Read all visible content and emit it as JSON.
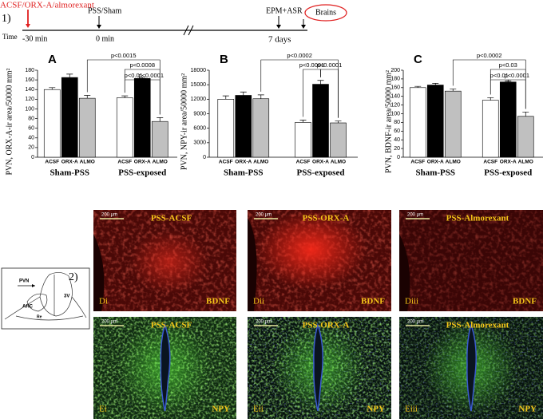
{
  "timeline": {
    "panel_label": "1)",
    "treatment": "ACSF/ORX-A/almorexant",
    "time_label": "Time",
    "t_minus": "-30 min",
    "t_zero": "0 min",
    "t_end": "7 days",
    "event_stress": "PSS/Sham",
    "event_test": "EPM+ASR",
    "event_end": "Brains"
  },
  "chart_data": [
    {
      "type": "bar",
      "panel": "A",
      "ylabel": "PVN, ORX-A-ir area/50000 mm²",
      "categories": [
        "Sham-PSS",
        "PSS-exposed"
      ],
      "series": [
        {
          "name": "ACSF",
          "color": "#ffffff",
          "values": [
            140,
            123
          ],
          "errors": [
            4,
            4
          ]
        },
        {
          "name": "ORX-A",
          "color": "#000000",
          "values": [
            165,
            163
          ],
          "errors": [
            7,
            2
          ]
        },
        {
          "name": "ALMO",
          "color": "#c0c0c0",
          "values": [
            122,
            74
          ],
          "errors": [
            6,
            8
          ]
        }
      ],
      "ylim": [
        0,
        180
      ],
      "yticks": [
        0,
        20,
        40,
        60,
        80,
        100,
        120,
        140,
        160,
        180
      ],
      "annotations": [
        "p<0.0015",
        "p<0.0008",
        "p<0.01",
        "p<0.0001"
      ]
    },
    {
      "type": "bar",
      "panel": "B",
      "ylabel": "PVN, NPY-ir area/50000 mm²",
      "categories": [
        "Sham-PSS",
        "PSS-exposed"
      ],
      "series": [
        {
          "name": "ACSF",
          "color": "#ffffff",
          "values": [
            12000,
            7200
          ],
          "errors": [
            700,
            500
          ]
        },
        {
          "name": "ORX-A",
          "color": "#000000",
          "values": [
            12800,
            15100
          ],
          "errors": [
            700,
            800
          ]
        },
        {
          "name": "ALMO",
          "color": "#c0c0c0",
          "values": [
            12100,
            7100
          ],
          "errors": [
            800,
            400
          ]
        }
      ],
      "ylim": [
        0,
        18000
      ],
      "yticks": [
        0,
        3000,
        6000,
        9000,
        12000,
        15000,
        18000
      ],
      "annotations": [
        "p<0.0002",
        "p<0.0001",
        "p<0.0001"
      ]
    },
    {
      "type": "bar",
      "panel": "C",
      "ylabel": "PVN, BDNF-ir area/50000 mm²",
      "categories": [
        "Sham-PSS",
        "PSS-exposed"
      ],
      "series": [
        {
          "name": "ACSF",
          "color": "#ffffff",
          "values": [
            160,
            131
          ],
          "errors": [
            3,
            6
          ]
        },
        {
          "name": "ORX-A",
          "color": "#000000",
          "values": [
            166,
            173
          ],
          "errors": [
            4,
            2
          ]
        },
        {
          "name": "ALMO",
          "color": "#c0c0c0",
          "values": [
            152,
            94
          ],
          "errors": [
            5,
            10
          ]
        }
      ],
      "ylim": [
        0,
        200
      ],
      "yticks": [
        0,
        20,
        40,
        60,
        80,
        100,
        120,
        140,
        160,
        180,
        200
      ],
      "annotations": [
        "p<0.0002",
        "p<0.03",
        "p<0.01",
        "p<0.0001"
      ]
    }
  ],
  "micrographs": {
    "scale_bar": "200 µm",
    "conditions": [
      "PSS-ACSF",
      "PSS-ORX-A",
      "PSS-Almorexant"
    ],
    "markers": [
      "BDNF",
      "NPY"
    ],
    "panels": [
      [
        "Di",
        "Dii",
        "Diii"
      ],
      [
        "Ei",
        "Eii",
        "Eiii"
      ]
    ]
  },
  "diagram": {
    "panel_label": "2)",
    "labels": [
      "PVN",
      "3V",
      "AHC",
      "Re"
    ]
  }
}
